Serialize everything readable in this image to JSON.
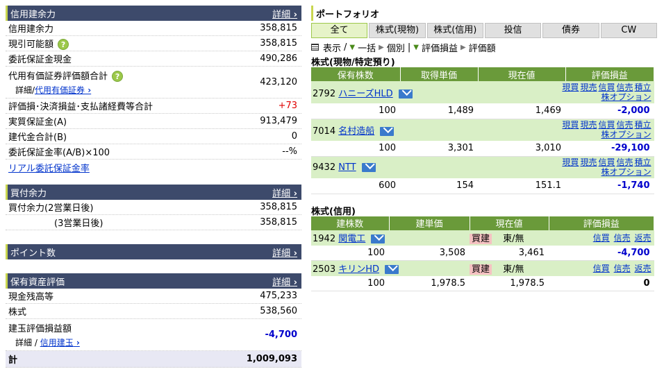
{
  "credit": {
    "header": "信用建余力",
    "detail": "詳細",
    "rows": [
      {
        "label": "信用建余力",
        "value": "358,815"
      },
      {
        "label": "現引可能額",
        "value": "358,815"
      },
      {
        "label": "委託保証金現金",
        "value": "490,286"
      },
      {
        "label": "代用有価証券評価額合計",
        "sub_prefix": "詳細/",
        "sub_link": "代用有価証券",
        "value": "423,120"
      },
      {
        "label": "評価損･決済損益･支払諸経費等合計",
        "value": "+73"
      },
      {
        "label": "実質保証金(A)",
        "value": "913,479"
      },
      {
        "label": "建代金合計(B)",
        "value": "0"
      },
      {
        "label": "委託保証金率(A/B)×100",
        "value": "--%"
      }
    ],
    "realtime_link": "リアル委託保証金率"
  },
  "buying": {
    "header": "買付余力",
    "detail": "詳細",
    "rows": [
      {
        "label": "買付余力(2営業日後)",
        "value": "358,815"
      },
      {
        "label": "(3営業日後)",
        "value": "358,815"
      }
    ]
  },
  "points": {
    "header": "ポイント数",
    "detail": "詳細"
  },
  "assets": {
    "header": "保有資産評価",
    "detail": "詳細",
    "rows": [
      {
        "label": "現金残高等",
        "value": "475,233"
      },
      {
        "label": "株式",
        "value": "538,560"
      },
      {
        "label": "建玉評価損益額",
        "sub_prefix": "詳細 / ",
        "sub_link": "信用建玉",
        "value": "-4,700"
      }
    ],
    "total_label": "計",
    "total_value": "1,009,093"
  },
  "portfolio": {
    "title": "ポートフォリオ",
    "tabs": [
      "全て",
      "株式(現物)",
      "株式(信用)",
      "投信",
      "債券",
      "CW"
    ],
    "opts": {
      "show": "表示",
      "sep1": "/",
      "bulk": "一括",
      "indiv": "個別",
      "sep2": "|",
      "pl": "評価損益",
      "val": "評価額"
    },
    "spot_title": "株式(現物/特定預り)",
    "spot_headers": [
      "保有株数",
      "取得単価",
      "現在値",
      "評価損益"
    ],
    "spot": [
      {
        "code": "2792",
        "name": "ハニーズHLD",
        "qty": "100",
        "cost": "1,489",
        "price": "1,469",
        "pl": "-2,000"
      },
      {
        "code": "7014",
        "name": "名村造船",
        "qty": "100",
        "cost": "3,301",
        "price": "3,010",
        "pl": "-29,100"
      },
      {
        "code": "9432",
        "name": "NTT",
        "qty": "600",
        "cost": "154",
        "price": "151.1",
        "pl": "-1,740"
      }
    ],
    "spot_actions": [
      "現買",
      "現売",
      "信買",
      "信売",
      "積立"
    ],
    "spot_option": "株オプション",
    "margin_title": "株式(信用)",
    "margin_headers": [
      "建株数",
      "建単価",
      "現在値",
      "評価損益"
    ],
    "margin": [
      {
        "code": "1942",
        "name": "関電工",
        "type": "買建",
        "market": "東/無",
        "qty": "100",
        "cost": "3,508",
        "price": "3,461",
        "pl": "-4,700"
      },
      {
        "code": "2503",
        "name": "キリンHD",
        "type": "買建",
        "market": "東/無",
        "qty": "100",
        "cost": "1,978.5",
        "price": "1,978.5",
        "pl": "0"
      }
    ],
    "margin_actions": [
      "信買",
      "信売",
      "返売"
    ]
  }
}
